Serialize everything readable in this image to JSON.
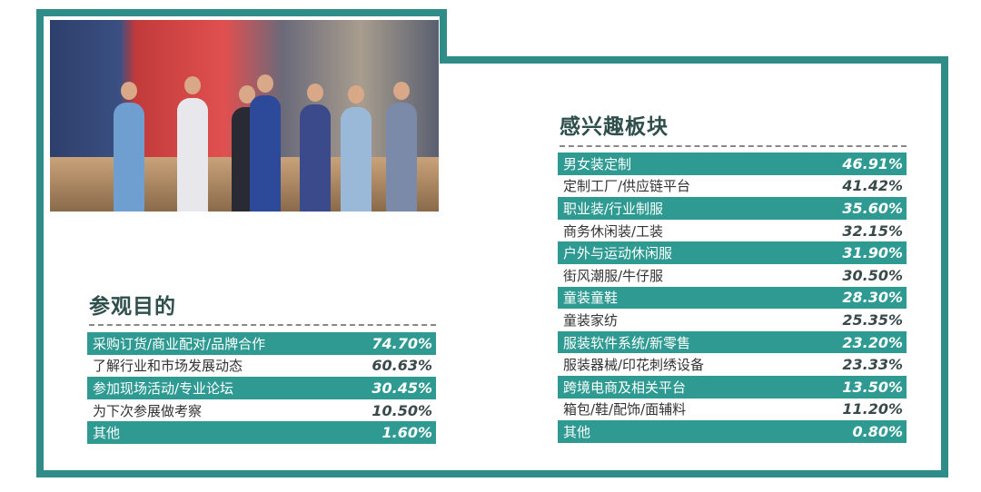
{
  "colors": {
    "frame": "#2f8c88",
    "highlight_row": "#2e9a92",
    "title": "#2f4f4c"
  },
  "photo": {
    "description_icon": "exhibition-photo"
  },
  "interest": {
    "title": "感兴趣板块",
    "items": [
      {
        "label": "男女装定制",
        "value": "46.91%"
      },
      {
        "label": "定制工厂/供应链平台",
        "value": "41.42%"
      },
      {
        "label": "职业装/行业制服",
        "value": "35.60%"
      },
      {
        "label": "商务休闲装/工装",
        "value": "32.15%"
      },
      {
        "label": "户外与运动休闲服",
        "value": "31.90%"
      },
      {
        "label": "街风潮服/牛仔服",
        "value": "30.50%"
      },
      {
        "label": "童装童鞋",
        "value": "28.30%"
      },
      {
        "label": "童装家纺",
        "value": "25.35%"
      },
      {
        "label": "服装软件系统/新零售",
        "value": "23.20%"
      },
      {
        "label": "服装器械/印花刺绣设备",
        "value": "23.33%"
      },
      {
        "label": "跨境电商及相关平台",
        "value": "13.50%"
      },
      {
        "label": "箱包/鞋/配饰/面辅料",
        "value": "11.20%"
      },
      {
        "label": "其他",
        "value": "0.80%"
      }
    ]
  },
  "purpose": {
    "title": "参观目的",
    "items": [
      {
        "label": "采购订货/商业配对/品牌合作",
        "value": "74.70%"
      },
      {
        "label": "了解行业和市场发展动态",
        "value": "60.63%"
      },
      {
        "label": "参加现场活动/专业论坛",
        "value": "30.45%"
      },
      {
        "label": "为下次参展做考察",
        "value": "10.50%"
      },
      {
        "label": "其他",
        "value": "1.60%"
      }
    ]
  }
}
